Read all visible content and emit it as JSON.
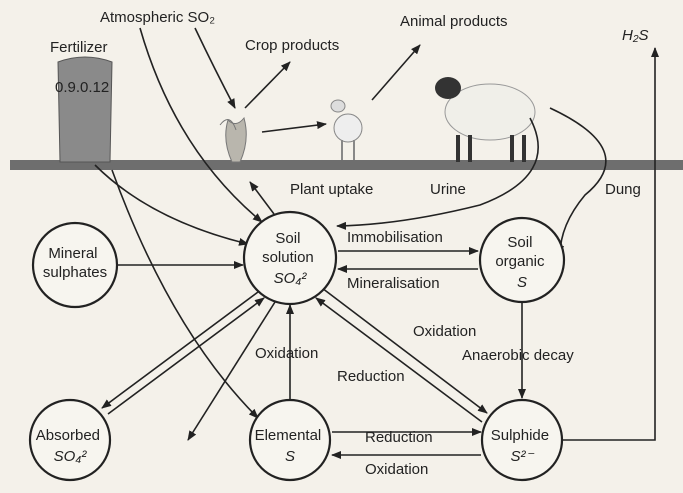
{
  "header": {
    "atmospheric": "Atmospheric SO₂",
    "crop_products": "Crop products",
    "animal_products": "Animal products",
    "h2s": "H₂S",
    "fertilizer": "Fertilizer",
    "fertilizer_grade": "0.9.0.12",
    "plant_uptake": "Plant uptake",
    "urine": "Urine",
    "dung": "Dung"
  },
  "nodes": [
    {
      "lines": [
        "Mineral",
        "sulphates"
      ]
    },
    {
      "lines": [
        "Soil",
        "solution",
        "SO₄²"
      ]
    },
    {
      "lines": [
        "Soil",
        "organic",
        "S"
      ]
    },
    {
      "lines": [
        "Absorbed",
        "SO₄²"
      ]
    },
    {
      "lines": [
        "Elemental",
        "S"
      ]
    },
    {
      "lines": [
        "Sulphide",
        "S²⁻"
      ]
    }
  ],
  "edges": [
    "Immobilisation",
    "Mineralisation",
    "Oxidation",
    "Anaerobic decay",
    "Oxidation",
    "Reduction",
    "Reduction",
    "Oxidation"
  ]
}
